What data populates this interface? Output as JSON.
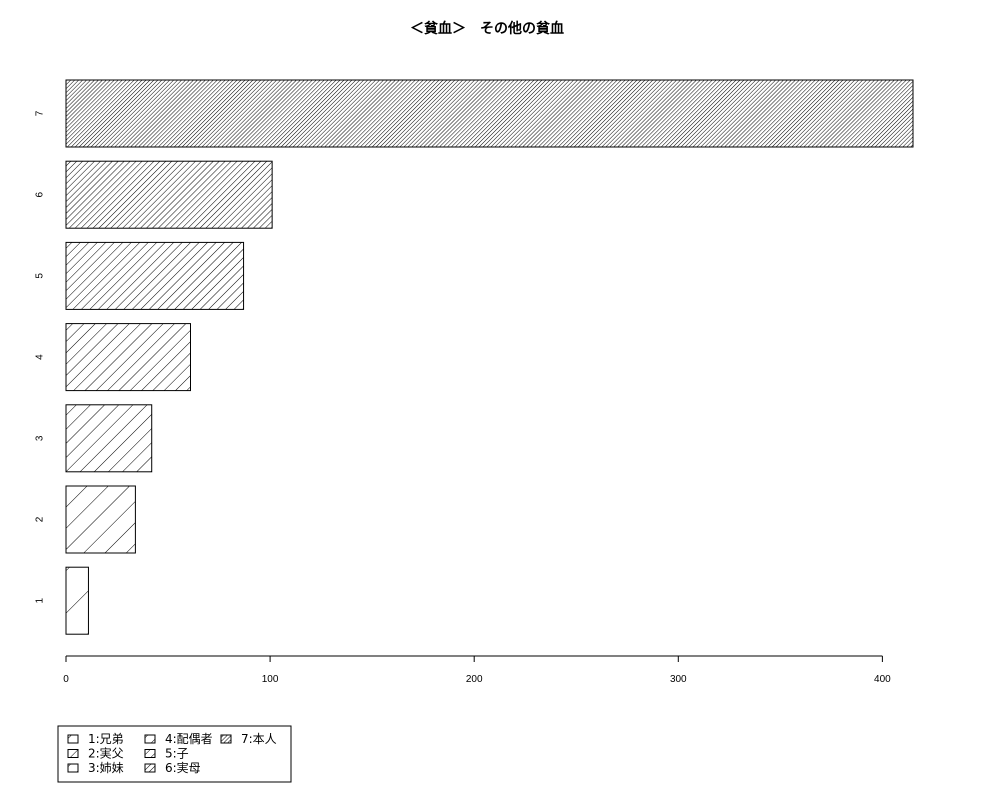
{
  "chart_data": {
    "type": "bar",
    "orientation": "horizontal",
    "title": "＜貧血＞　その他の貧血",
    "xlabel": "",
    "ylabel": "",
    "categories": [
      "1",
      "2",
      "3",
      "4",
      "5",
      "6",
      "7"
    ],
    "values": [
      11,
      34,
      42,
      61,
      87,
      101,
      415
    ],
    "xlim": [
      0,
      415
    ],
    "x_ticks": [
      0,
      100,
      200,
      300,
      400
    ],
    "grid": false,
    "legend_position": "bottom-left",
    "legend": [
      {
        "key": "1",
        "label": "1:兄弟"
      },
      {
        "key": "2",
        "label": "2:実父"
      },
      {
        "key": "3",
        "label": "3:姉妹"
      },
      {
        "key": "4",
        "label": "4:配偶者"
      },
      {
        "key": "5",
        "label": "5:子"
      },
      {
        "key": "6",
        "label": "6:実母"
      },
      {
        "key": "7",
        "label": "7:本人"
      }
    ],
    "bar_fill": "#ffffff",
    "bar_stroke": "#000000",
    "hatch_color": "#000000"
  }
}
